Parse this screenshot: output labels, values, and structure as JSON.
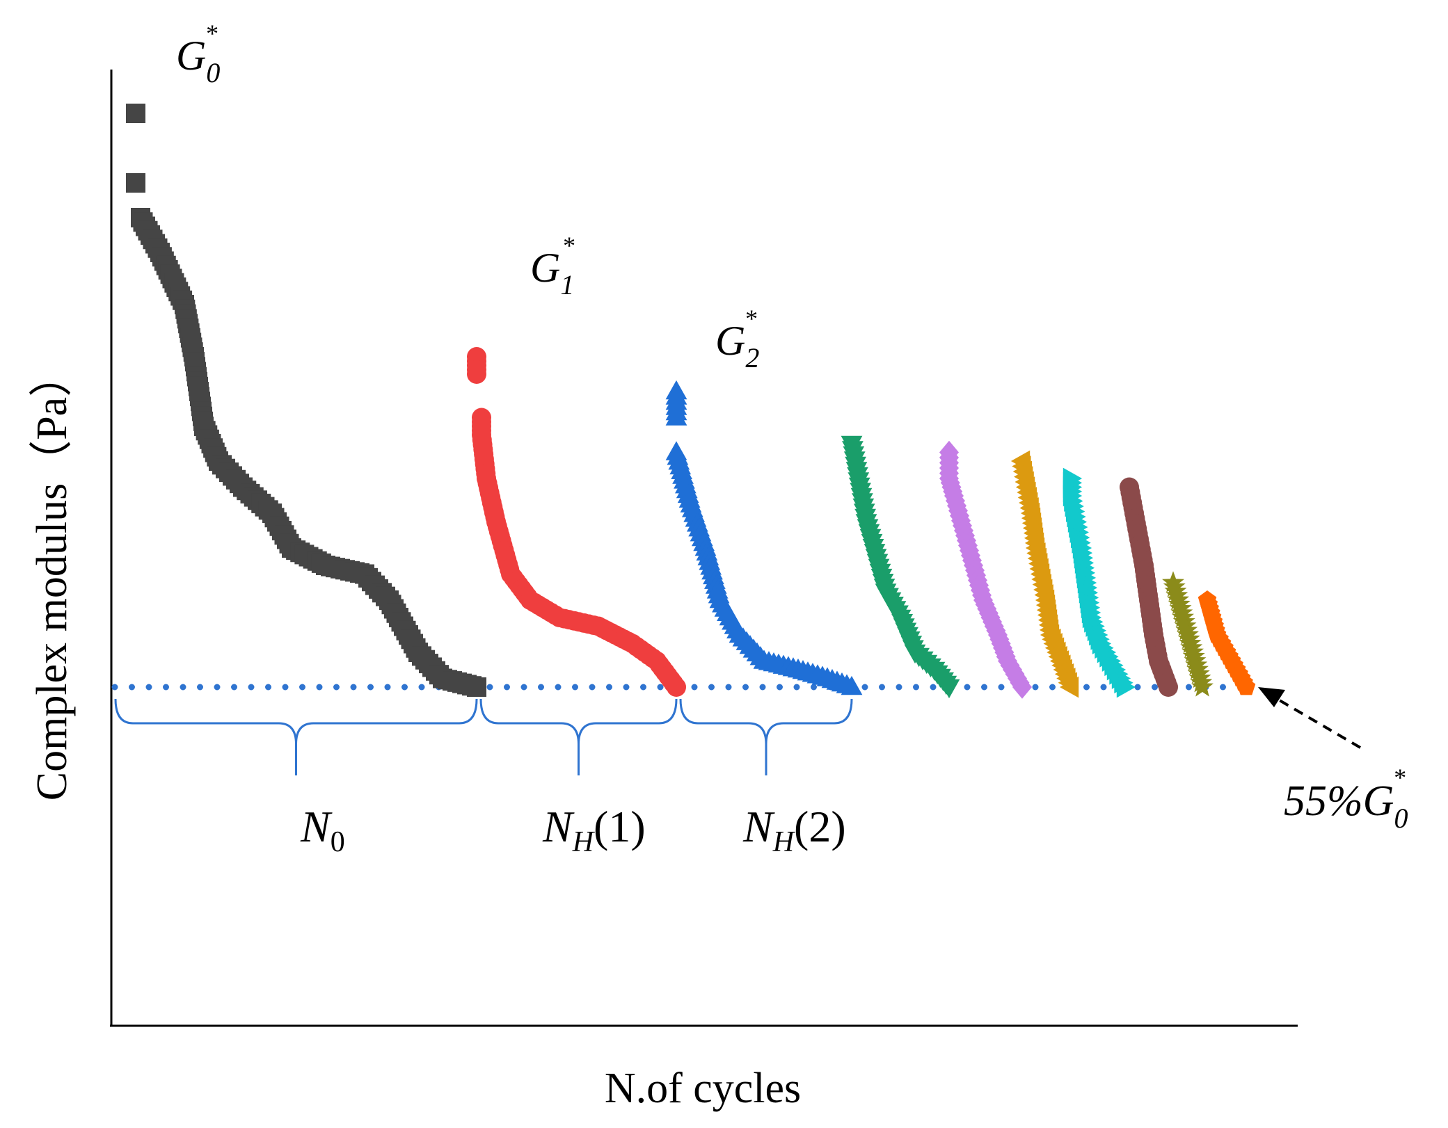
{
  "chart_data": {
    "type": "scatter",
    "title": "",
    "xlabel": "N.of cycles",
    "ylabel": "Complex modulus（Pa）",
    "x_ticks": "none",
    "y_ticks": "none",
    "grid": false,
    "legend": "none",
    "annotations": {
      "g0": {
        "base": "G",
        "sub": "0",
        "sup": "*"
      },
      "g1": {
        "base": "G",
        "sub": "1",
        "sup": "*"
      },
      "g2": {
        "base": "G",
        "sub": "2",
        "sup": "*"
      },
      "n0": {
        "base": "N",
        "sub": "0",
        "tail": ""
      },
      "nh1": {
        "base": "N",
        "sub": "H",
        "tail": "(1)"
      },
      "nh2": {
        "base": "N",
        "sub": "H",
        "tail": "(2)"
      },
      "threshold": {
        "prefix": "55%",
        "base": "G",
        "sub": "0",
        "sup": "*"
      }
    },
    "threshold_color": "#2f74d0",
    "brace_color": "#2f74d0",
    "series": [
      {
        "marker": "square",
        "color": "#454545",
        "start": [
          5,
          100
        ],
        "points": [
          [
            5,
            100
          ],
          [
            5,
            92
          ],
          [
            6,
            88
          ],
          [
            10,
            84
          ],
          [
            15,
            78
          ],
          [
            17,
            72
          ],
          [
            19,
            64
          ],
          [
            22,
            60
          ],
          [
            27,
            57
          ],
          [
            33,
            54
          ],
          [
            37,
            50
          ],
          [
            44,
            48
          ],
          [
            52,
            47
          ],
          [
            57,
            44
          ],
          [
            63,
            38
          ],
          [
            68,
            35
          ],
          [
            75,
            34
          ]
        ]
      },
      {
        "marker": "circle",
        "color": "#ef3e3e",
        "start": [
          75,
          72
        ],
        "points": [
          [
            75,
            72
          ],
          [
            75,
            70
          ],
          [
            76,
            65
          ],
          [
            76,
            63
          ],
          [
            77,
            58
          ],
          [
            79,
            53
          ],
          [
            82,
            47
          ],
          [
            86,
            44
          ],
          [
            92,
            42
          ],
          [
            100,
            41
          ],
          [
            107,
            39
          ],
          [
            112,
            37
          ],
          [
            116,
            34
          ]
        ]
      },
      {
        "marker": "triangle-up",
        "color": "#1f6fd6",
        "start": [
          116,
          68
        ],
        "points": [
          [
            116,
            68
          ],
          [
            116,
            65
          ],
          [
            116,
            61
          ],
          [
            119,
            55
          ],
          [
            122,
            50
          ],
          [
            125,
            44
          ],
          [
            129,
            40
          ],
          [
            134,
            37
          ],
          [
            141,
            36
          ],
          [
            147,
            35
          ],
          [
            152,
            34
          ]
        ]
      },
      {
        "marker": "triangle-down",
        "color": "#1a9e6a",
        "start": [
          152,
          62
        ],
        "points": [
          [
            152,
            62
          ],
          [
            153,
            59
          ],
          [
            154,
            56
          ],
          [
            155,
            53
          ],
          [
            157,
            49
          ],
          [
            159,
            45
          ],
          [
            162,
            42
          ],
          [
            165,
            38
          ],
          [
            169,
            36
          ],
          [
            172,
            34
          ]
        ]
      },
      {
        "marker": "diamond",
        "color": "#c57de6",
        "start": [
          172,
          61
        ],
        "points": [
          [
            172,
            61
          ],
          [
            172,
            58
          ],
          [
            173,
            56
          ],
          [
            175,
            52
          ],
          [
            177,
            48
          ],
          [
            179,
            44
          ],
          [
            182,
            40
          ],
          [
            184,
            37
          ],
          [
            187,
            34
          ]
        ]
      },
      {
        "marker": "triangle-left",
        "color": "#dc9a10",
        "start": [
          187,
          60
        ],
        "points": [
          [
            187,
            60
          ],
          [
            188,
            57
          ],
          [
            189,
            54
          ],
          [
            190,
            50
          ],
          [
            191,
            47
          ],
          [
            192,
            44
          ],
          [
            193,
            40
          ],
          [
            195,
            37
          ],
          [
            197,
            34
          ]
        ]
      },
      {
        "marker": "triangle-right",
        "color": "#12c9cc",
        "start": [
          197,
          58
        ],
        "points": [
          [
            197,
            58
          ],
          [
            197,
            56
          ],
          [
            198,
            53
          ],
          [
            199,
            50
          ],
          [
            200,
            46
          ],
          [
            201,
            42
          ],
          [
            203,
            39
          ],
          [
            205,
            37
          ],
          [
            208,
            34
          ]
        ]
      },
      {
        "marker": "circle",
        "color": "#8b4a4a",
        "start": [
          209,
          57
        ],
        "points": [
          [
            209,
            57
          ],
          [
            210,
            54
          ],
          [
            211,
            51
          ],
          [
            212,
            48
          ],
          [
            213,
            44
          ],
          [
            214,
            40
          ],
          [
            215,
            37
          ],
          [
            217,
            34
          ]
        ]
      },
      {
        "marker": "star",
        "color": "#8b8b1a",
        "start": [
          218,
          46
        ],
        "points": [
          [
            218,
            46
          ],
          [
            219,
            44
          ],
          [
            220,
            42
          ],
          [
            221,
            40
          ],
          [
            222,
            38
          ],
          [
            223,
            36
          ],
          [
            224,
            34
          ]
        ]
      },
      {
        "marker": "pentagon",
        "color": "#ff6600",
        "start": [
          225,
          44
        ],
        "points": [
          [
            225,
            44
          ],
          [
            226,
            42
          ],
          [
            227,
            40
          ],
          [
            229,
            38
          ],
          [
            231,
            36
          ],
          [
            233,
            34
          ]
        ]
      }
    ]
  }
}
